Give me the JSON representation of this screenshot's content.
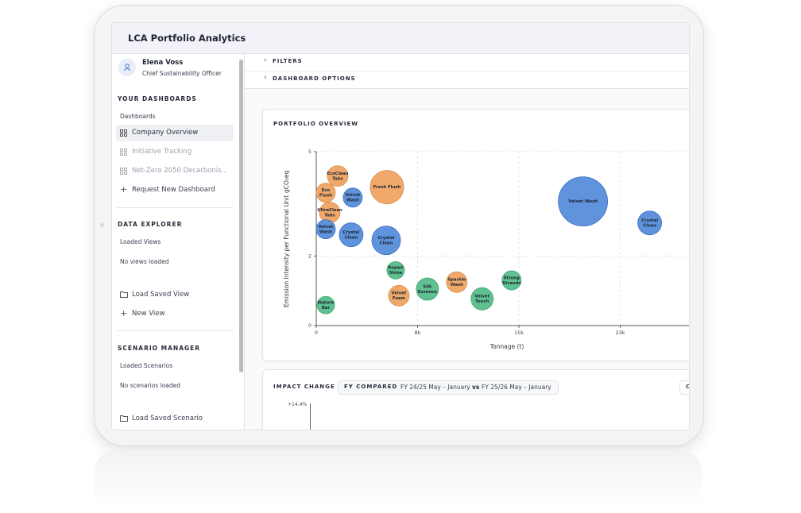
{
  "header": {
    "title": "LCA Portfolio Analytics"
  },
  "sidebar": {
    "user": {
      "name": "Elena Voss",
      "role": "Chief Sustainability Officer"
    },
    "dashboards": {
      "heading": "YOUR DASHBOARDS",
      "label": "Dashboards",
      "items": [
        "Company Overview",
        "Initiative Tracking",
        "Net-Zero 2050 Decarbonis...",
        "Request New Dashboard"
      ]
    },
    "data_explorer": {
      "heading": "DATA EXPLORER",
      "label": "Loaded Views",
      "empty": "No views loaded",
      "actions": [
        "Load Saved View",
        "New View"
      ]
    },
    "scenario_manager": {
      "heading": "SCENARIO MANAGER",
      "label": "Loaded Scenarios",
      "empty": "No scenarios loaded",
      "actions": [
        "Load Saved Scenario"
      ]
    }
  },
  "main": {
    "sections": [
      "FILTERS",
      "DASHBOARD OPTIONS"
    ],
    "impact": {
      "title": "IMPACT CHANGE",
      "pill_label": "FY COMPARED",
      "period_a": "FY 24/25 May – January",
      "vs": "vs",
      "period_b": "FY 25/26 May – January",
      "button": "C",
      "ytick_label": "+14.4%"
    }
  },
  "chart_data": {
    "type": "bubble",
    "title": "PORTFOLIO OVERVIEW",
    "x_label": "Tonnage (t)",
    "y_label": "Emission Intensity per Functional Unit gCO₂eq",
    "labels": [
      [
        "EcoClean",
        "Tabs"
      ],
      [
        "Eco",
        "Flush"
      ],
      [
        "Velvet",
        "Wash"
      ],
      [
        "Fresh Flush"
      ],
      [
        "UltraClean",
        "Tabs"
      ],
      [
        "Velvet",
        "Wash"
      ],
      [
        "Crystal",
        "Clean"
      ],
      [
        "Crystal",
        "Clean"
      ],
      [
        "Velvet Wash"
      ],
      [
        "Crystal",
        "Clean"
      ],
      [
        "Repair",
        "Shine"
      ],
      [
        "Sparkle",
        "Wash"
      ],
      [
        "Strong",
        "Strands"
      ],
      [
        "Silk",
        "Essence"
      ],
      [
        "Velvet",
        "Foam"
      ],
      [
        "Velvet",
        "Touch"
      ],
      [
        "Nature",
        "Bar"
      ]
    ],
    "x": [
      1620,
      720,
      2760,
      5350,
      1020,
      720,
      2640,
      5290,
      20180,
      25230,
      6010,
      10630,
      14780,
      8410,
      6250,
      12550,
      720
    ],
    "y": [
      4.3,
      3.82,
      3.68,
      3.98,
      3.25,
      2.77,
      2.61,
      2.45,
      3.57,
      2.95,
      1.59,
      1.25,
      1.3,
      1.05,
      0.86,
      0.77,
      0.59
    ],
    "sizes": [
      13,
      12,
      12,
      21,
      13,
      12,
      15,
      18,
      31,
      15,
      11,
      13,
      12,
      14,
      13,
      14,
      11
    ],
    "colors": [
      "#f1a96b",
      "#f1a96b",
      "#5f93dc",
      "#f1a96b",
      "#f1a96b",
      "#5f93dc",
      "#5f93dc",
      "#5f93dc",
      "#5f93dc",
      "#5f93dc",
      "#5fc190",
      "#f1a96b",
      "#5fc190",
      "#5fc190",
      "#f1a96b",
      "#5fc190",
      "#5fc190"
    ],
    "xlim": [
      0,
      28200
    ],
    "ylim": [
      0,
      5
    ],
    "xticks": [
      0,
      {
        "value": 7667,
        "label": "8k"
      },
      {
        "value": 15333,
        "label": "15k"
      },
      {
        "value": 23000,
        "label": "23k"
      }
    ],
    "yticks": [
      0,
      2,
      5
    ],
    "grid": true
  }
}
